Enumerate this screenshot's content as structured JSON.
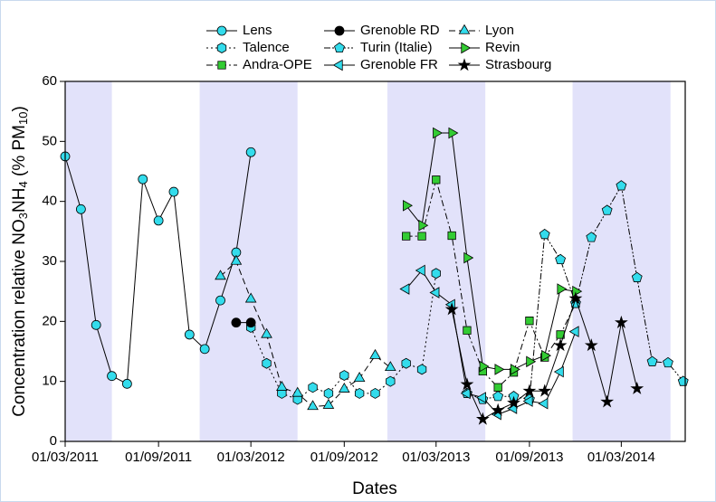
{
  "chart_data": {
    "type": "line",
    "x_label": "Dates",
    "y_label_parts": [
      "Concentration relative NO",
      "3",
      "NH",
      "4",
      " (% PM",
      "10",
      ")"
    ],
    "xlim": [
      "01/03/2011",
      "05/07/2014"
    ],
    "xticks": [
      "01/03/2011",
      "01/09/2011",
      "01/03/2012",
      "01/09/2012",
      "01/03/2013",
      "01/09/2013",
      "01/03/2014"
    ],
    "ylim": [
      0,
      60
    ],
    "yticks": [
      0,
      10,
      20,
      30,
      40,
      50,
      60
    ],
    "shaded_periods": [
      [
        "01/03/2011",
        "01/06/2011"
      ],
      [
        "21/11/2011",
        "01/06/2012"
      ],
      [
        "25/11/2012",
        "06/06/2013"
      ],
      [
        "25/11/2013",
        "06/06/2014"
      ]
    ],
    "shade_color": "#e2e2fa",
    "legend": "top",
    "series": [
      {
        "name": "Lens",
        "color": "#33dcec",
        "marker": "circle",
        "dash": "solid",
        "x": [
          "01/03/2011",
          "01/04/2011",
          "01/05/2011",
          "01/06/2011",
          "01/07/2011",
          "01/08/2011",
          "01/09/2011",
          "01/10/2011",
          "01/11/2011",
          "01/12/2011",
          "01/01/2012",
          "01/02/2012",
          "01/03/2012"
        ],
        "values": [
          47.5,
          38.7,
          19.4,
          10.9,
          9.6,
          43.7,
          36.8,
          41.6,
          17.8,
          15.4,
          23.5,
          31.5,
          48.2
        ]
      },
      {
        "name": "Talence",
        "color": "#33dcec",
        "marker": "hexagon",
        "dash": "dot",
        "x": [
          "01/03/2012",
          "01/04/2012",
          "01/05/2012",
          "01/06/2012",
          "01/07/2012",
          "01/08/2012",
          "01/09/2012",
          "01/10/2012",
          "01/11/2012",
          "01/12/2012",
          "01/01/2013",
          "01/02/2013",
          "01/03/2013"
        ],
        "values": [
          19.0,
          13.0,
          8.0,
          7.0,
          9.0,
          8.0,
          11.0,
          8.0,
          8.0,
          10.0,
          13.0,
          12.0,
          28.0
        ]
      },
      {
        "name": "Andra-OPE",
        "color": "#33cc33",
        "marker": "square",
        "dash": "dashdot",
        "x": [
          "01/01/2013",
          "01/02/2013",
          "01/03/2013",
          "01/04/2013",
          "01/05/2013",
          "01/06/2013",
          "01/07/2013",
          "01/08/2013",
          "01/09/2013",
          "01/10/2013",
          "01/11/2013",
          "01/12/2013"
        ],
        "values": [
          34.2,
          34.2,
          43.6,
          34.3,
          18.5,
          11.7,
          9.0,
          11.5,
          20.1,
          14.0,
          17.8,
          23.0
        ]
      },
      {
        "name": "Grenoble RD",
        "color": "#000000",
        "marker": "circle",
        "dash": "solid",
        "x": [
          "01/02/2012",
          "01/03/2012"
        ],
        "values": [
          19.8,
          19.8
        ]
      },
      {
        "name": "Turin (Italie)",
        "color": "#33dcec",
        "marker": "pentagon",
        "dash": "dashdotdot",
        "x": [
          "01/05/2013",
          "01/06/2013",
          "01/07/2013",
          "01/08/2013",
          "01/09/2013",
          "01/10/2013",
          "01/11/2013",
          "01/12/2013",
          "01/01/2014",
          "01/02/2014",
          "01/03/2014",
          "01/04/2014",
          "01/05/2014",
          "01/06/2014",
          "01/07/2014"
        ],
        "values": [
          8.0,
          7.0,
          7.5,
          7.5,
          7.0,
          34.5,
          30.3,
          23.0,
          34.0,
          38.5,
          42.6,
          27.3,
          13.3,
          13.1,
          10.0
        ]
      },
      {
        "name": "Grenoble FR",
        "color": "#33dcec",
        "marker": "tri-left",
        "dash": "solid",
        "x": [
          "01/01/2013",
          "01/02/2013",
          "01/03/2013",
          "01/04/2013",
          "01/05/2013",
          "01/06/2013",
          "01/07/2013",
          "01/08/2013",
          "01/09/2013",
          "01/10/2013",
          "01/11/2013",
          "01/12/2013"
        ],
        "values": [
          25.4,
          28.5,
          24.8,
          22.8,
          8.0,
          7.3,
          4.5,
          5.5,
          6.7,
          6.3,
          11.6,
          18.3
        ]
      },
      {
        "name": "Lyon",
        "color": "#33dcec",
        "marker": "tri-up",
        "dash": "dash",
        "x": [
          "01/01/2012",
          "01/02/2012",
          "01/03/2012",
          "01/04/2012",
          "01/05/2012",
          "01/06/2012",
          "01/07/2012",
          "01/08/2012",
          "01/09/2012",
          "01/10/2012",
          "01/11/2012",
          "01/12/2012"
        ],
        "values": [
          27.5,
          30.0,
          23.7,
          17.8,
          9.0,
          8.0,
          5.8,
          6.0,
          8.7,
          10.5,
          14.3,
          12.3
        ]
      },
      {
        "name": "Revin",
        "color": "#33cc33",
        "marker": "tri-right",
        "dash": "solid",
        "x": [
          "01/01/2013",
          "01/02/2013",
          "01/03/2013",
          "01/04/2013",
          "01/05/2013",
          "01/06/2013",
          "01/07/2013",
          "01/08/2013",
          "01/09/2013",
          "01/10/2013",
          "01/11/2013",
          "01/12/2013"
        ],
        "values": [
          39.3,
          36.0,
          51.4,
          51.4,
          30.6,
          12.5,
          12.0,
          12.0,
          13.3,
          14.3,
          25.4,
          25.0
        ]
      },
      {
        "name": "Strasbourg",
        "color": "#000000",
        "marker": "star",
        "dash": "solid",
        "x": [
          "01/04/2013",
          "01/05/2013",
          "01/06/2013",
          "01/07/2013",
          "01/08/2013",
          "01/09/2013",
          "01/10/2013",
          "01/11/2013",
          "01/12/2013",
          "01/01/2014",
          "01/02/2014",
          "01/03/2014",
          "01/04/2014"
        ],
        "values": [
          22.0,
          9.5,
          3.7,
          5.2,
          6.4,
          8.4,
          8.4,
          16.0,
          23.8,
          16.0,
          6.6,
          19.8,
          8.8
        ]
      }
    ]
  }
}
